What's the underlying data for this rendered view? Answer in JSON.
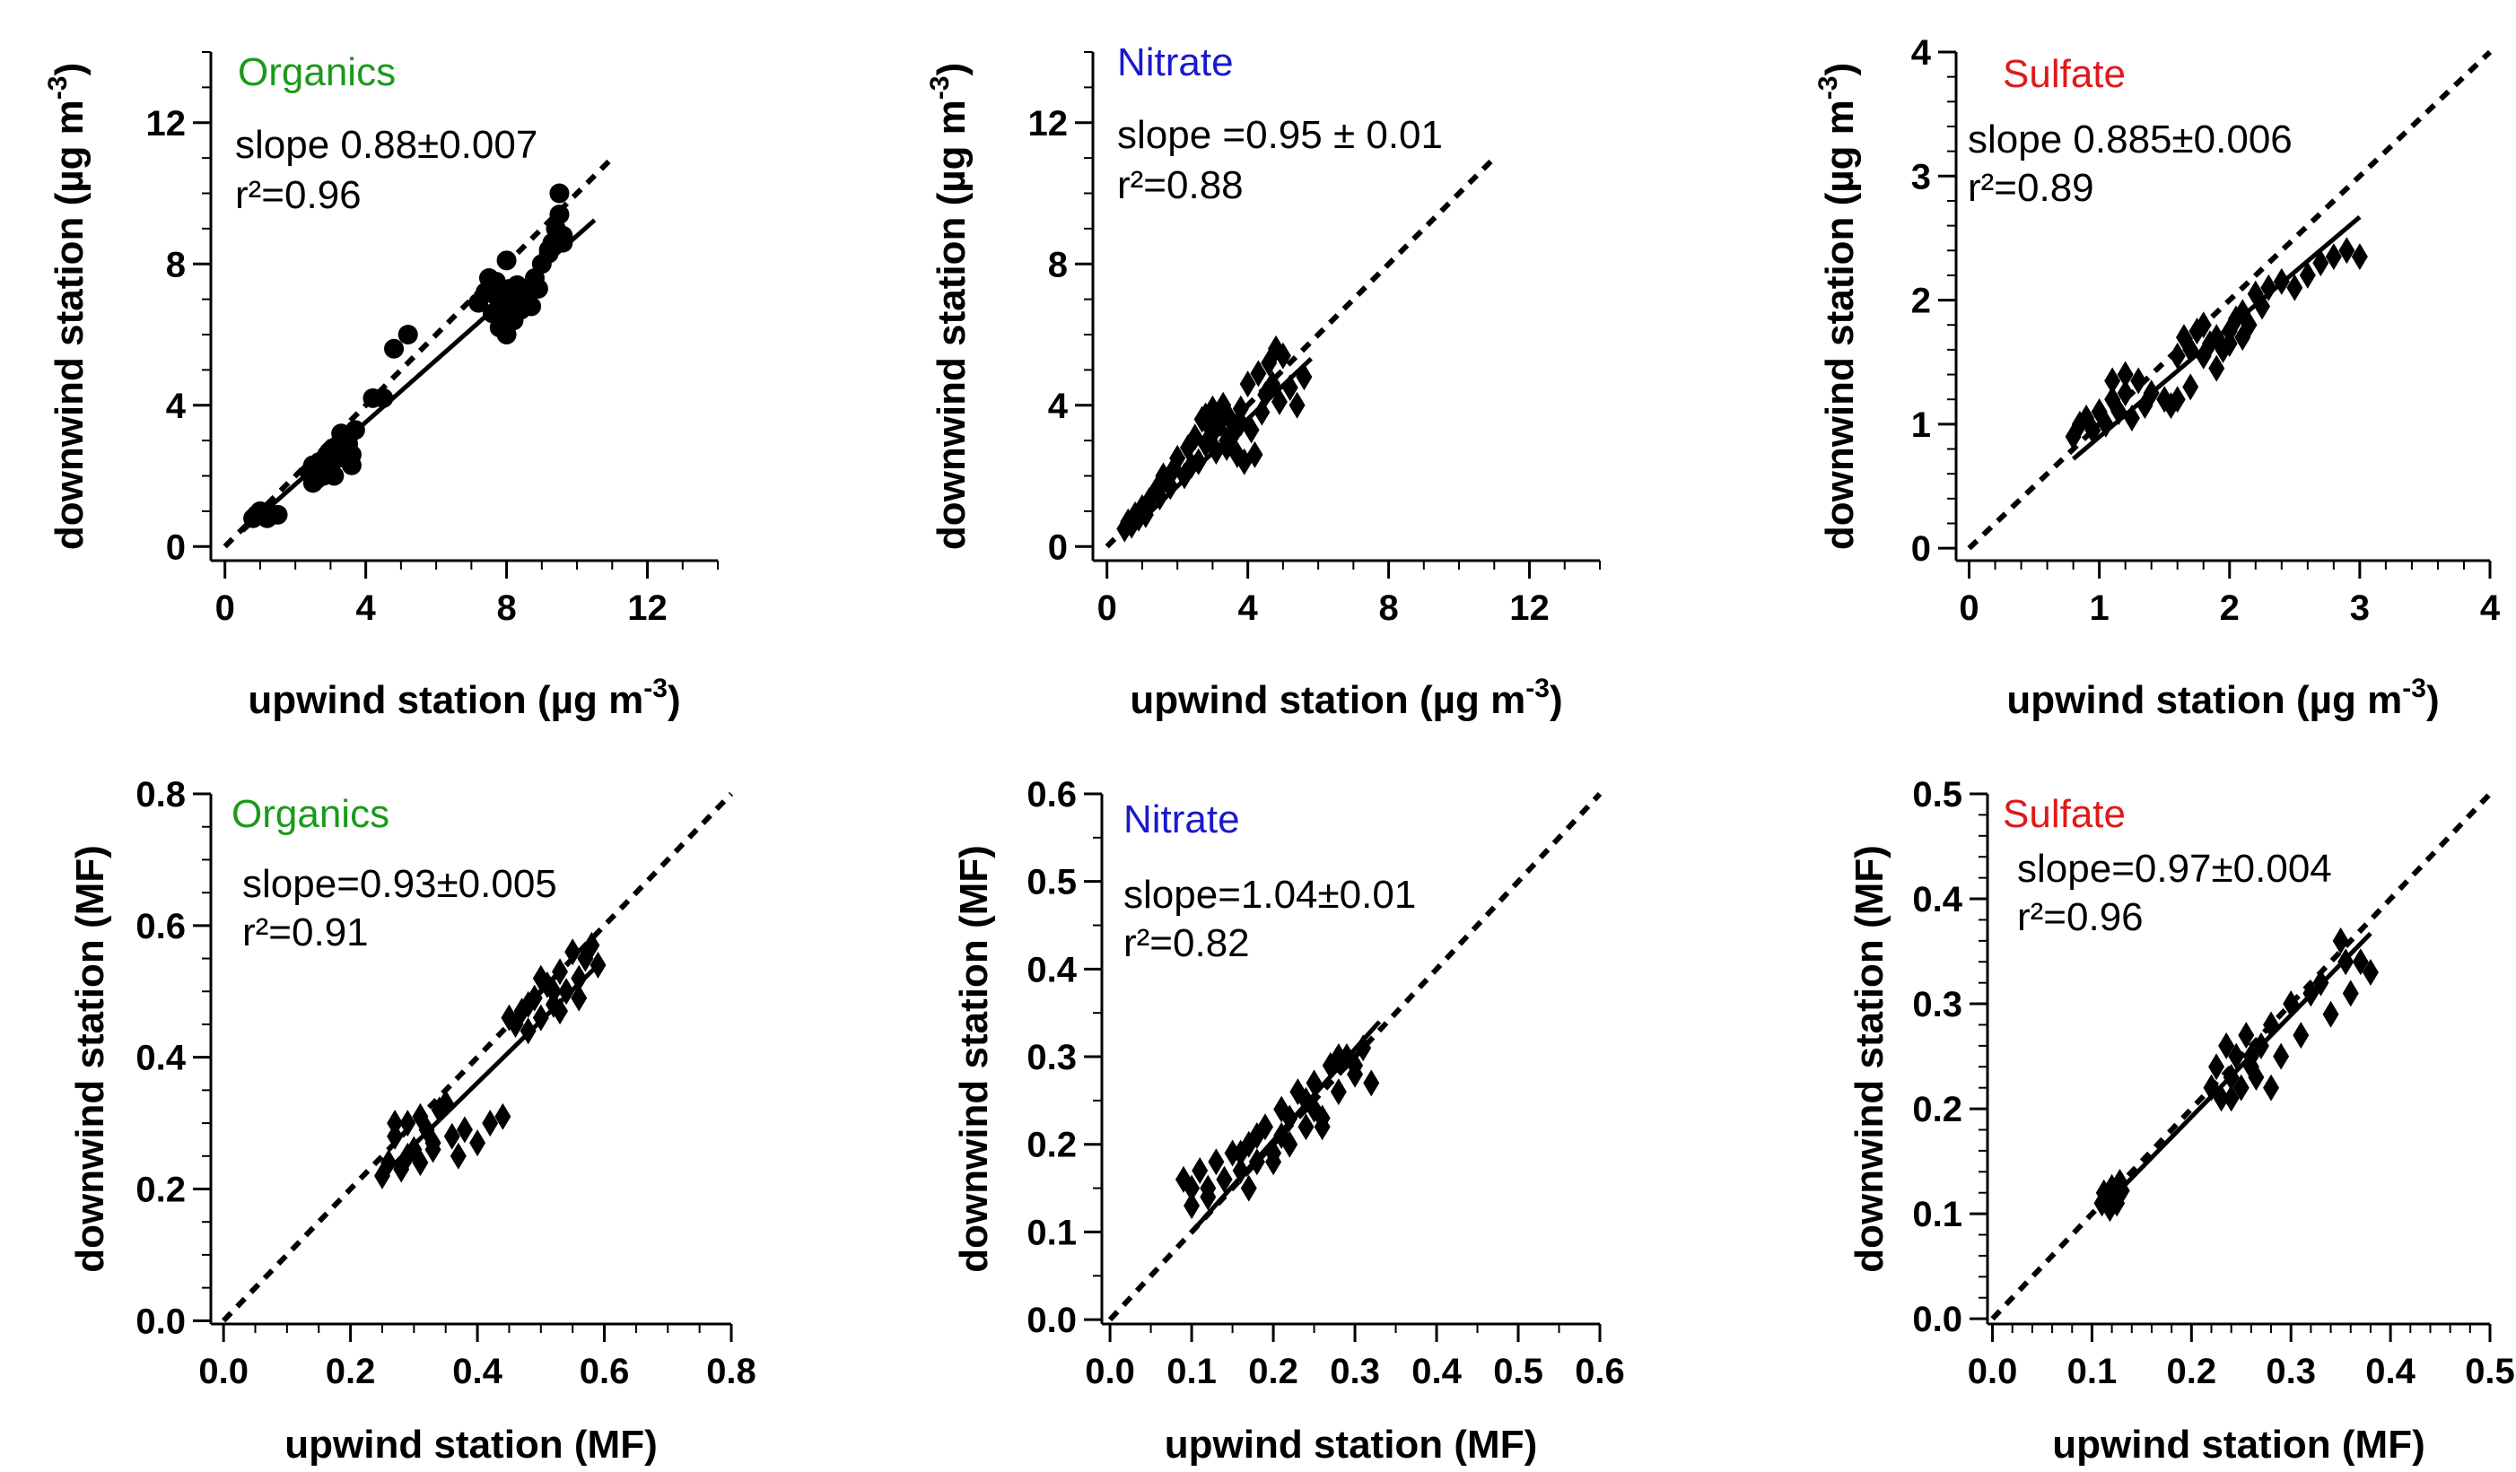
{
  "chart_data": [
    {
      "type": "scatter",
      "panel": "a",
      "title": "Organics",
      "title_color": "#1a9a1a",
      "xlabel": "upwind station (µg m",
      "xlabel_sup": "-3",
      "xlabel_tail": ")",
      "ylabel": "downwind station (µg m",
      "ylabel_sup": "-3",
      "ylabel_tail": ")",
      "xlim": [
        -0.4,
        14
      ],
      "ylim": [
        -0.4,
        14
      ],
      "xticks": [
        0,
        4,
        8,
        12
      ],
      "yticks": [
        0,
        4,
        8,
        12
      ],
      "xtick_labels": [
        "0",
        "4",
        "8",
        "12"
      ],
      "ytick_labels": [
        "0",
        "4",
        "8",
        "12"
      ],
      "minor_step": 1,
      "annotation_line1": "slope 0.88±0.007",
      "annotation_line2": "r²=0.96",
      "marker": "circle",
      "fit": {
        "x": [
          0.5,
          10.5
        ],
        "y": [
          0.44,
          9.24
        ]
      },
      "one_to_one": {
        "x": [
          0,
          11
        ],
        "y": [
          0,
          11
        ]
      },
      "x": [
        0.8,
        0.9,
        1.0,
        1.1,
        1.3,
        1.5,
        1.2,
        2.4,
        2.5,
        2.6,
        2.7,
        2.8,
        2.9,
        3.0,
        3.1,
        3.2,
        3.3,
        3.4,
        3.5,
        3.6,
        2.5,
        2.7,
        2.9,
        3.1,
        3.3,
        3.5,
        3.6,
        3.3,
        3.7,
        4.2,
        4.5,
        4.8,
        5.2,
        7.2,
        7.4,
        7.6,
        7.7,
        7.8,
        7.9,
        8.0,
        8.1,
        8.2,
        8.3,
        8.4,
        8.5,
        7.5,
        7.7,
        7.9,
        8.1,
        8.3,
        7.8,
        8.0,
        8.2,
        8.4,
        8.6,
        8.8,
        9.0,
        9.2,
        9.3,
        9.4,
        9.5,
        9.6,
        9.2,
        9.5,
        9.6,
        8.5,
        8.7,
        8.9,
        8.0
      ],
      "y": [
        0.8,
        0.9,
        1.0,
        0.9,
        0.9,
        0.9,
        0.8,
        2.1,
        2.3,
        1.9,
        2.4,
        2.0,
        2.6,
        2.3,
        2.8,
        2.5,
        3.0,
        2.7,
        2.9,
        2.6,
        1.8,
        2.2,
        2.4,
        2.0,
        2.7,
        3.1,
        2.3,
        3.2,
        3.3,
        4.2,
        4.2,
        5.6,
        6.0,
        6.9,
        7.2,
        6.6,
        7.5,
        6.8,
        7.0,
        6.3,
        7.3,
        6.6,
        7.4,
        6.9,
        7.1,
        7.6,
        7.1,
        6.5,
        6.8,
        7.2,
        6.2,
        6.0,
        6.4,
        6.7,
        7.3,
        7.6,
        8.0,
        8.3,
        8.6,
        9.0,
        9.4,
        8.8,
        8.4,
        10.0,
        8.6,
        7.0,
        6.8,
        7.3,
        8.1
      ]
    },
    {
      "type": "scatter",
      "panel": "b",
      "title": "Nitrate",
      "title_color": "#1a1acc",
      "xlabel": "upwind station (µg m",
      "xlabel_sup": "-3",
      "xlabel_tail": ")",
      "ylabel": "downwind station (µg m",
      "ylabel_sup": "-3",
      "ylabel_tail": ")",
      "xlim": [
        -0.4,
        14
      ],
      "ylim": [
        -0.4,
        14
      ],
      "xticks": [
        0,
        4,
        8,
        12
      ],
      "yticks": [
        0,
        4,
        8,
        12
      ],
      "xtick_labels": [
        "0",
        "4",
        "8",
        "12"
      ],
      "ytick_labels": [
        "0",
        "4",
        "8",
        "12"
      ],
      "minor_step": 1,
      "annotation_line1": "slope =0.95 ± 0.01",
      "annotation_line2": "r²=0.88",
      "marker": "diamond",
      "fit": {
        "x": [
          0.5,
          5.8
        ],
        "y": [
          0.28,
          5.32
        ]
      },
      "one_to_one": {
        "x": [
          0,
          11
        ],
        "y": [
          0,
          11
        ]
      },
      "x": [
        0.5,
        0.6,
        0.7,
        0.8,
        0.9,
        1.0,
        1.1,
        1.2,
        1.4,
        1.5,
        1.6,
        1.8,
        1.9,
        2.0,
        2.2,
        2.3,
        2.5,
        2.6,
        2.7,
        2.8,
        2.9,
        3.0,
        3.1,
        3.2,
        3.3,
        3.4,
        3.5,
        3.6,
        3.7,
        3.8,
        3.9,
        4.0,
        4.1,
        4.2,
        4.3,
        4.4,
        4.5,
        4.6,
        4.7,
        4.8,
        4.9,
        5.0,
        5.2,
        5.4,
        5.6,
        3.0,
        3.4,
        3.8,
        2.4,
        2.8
      ],
      "y": [
        0.5,
        0.7,
        0.6,
        0.9,
        0.8,
        1.1,
        0.9,
        1.3,
        1.6,
        1.4,
        2.0,
        1.7,
        2.2,
        2.5,
        2.0,
        2.8,
        3.1,
        2.4,
        3.6,
        2.9,
        3.4,
        3.9,
        2.7,
        3.5,
        4.0,
        3.0,
        3.6,
        3.2,
        2.6,
        3.9,
        2.4,
        4.6,
        3.3,
        2.6,
        4.9,
        3.8,
        4.3,
        5.2,
        4.6,
        5.6,
        4.1,
        5.4,
        4.5,
        4.0,
        4.8,
        3.2,
        2.8,
        3.5,
        2.3,
        3.7
      ]
    },
    {
      "type": "scatter",
      "panel": "c",
      "title": "Sulfate",
      "title_color": "#dd1a1a",
      "xlabel": "upwind station (µg m",
      "xlabel_sup": "-3",
      "xlabel_tail": ")",
      "ylabel": "downwind station (µg m",
      "ylabel_sup": "-3",
      "ylabel_tail": ")",
      "xlim": [
        -0.1,
        4
      ],
      "ylim": [
        -0.1,
        4
      ],
      "xticks": [
        0,
        1,
        2,
        3,
        4
      ],
      "yticks": [
        0,
        1,
        2,
        3,
        4
      ],
      "xtick_labels": [
        "0",
        "1",
        "2",
        "3",
        "4"
      ],
      "ytick_labels": [
        "0",
        "1",
        "2",
        "3",
        "4"
      ],
      "minor_step": 0.2,
      "annotation_line1": "slope 0.885±0.006",
      "annotation_line2": "r²=0.89",
      "marker": "diamond",
      "fit": {
        "x": [
          0.8,
          3.0
        ],
        "y": [
          0.72,
          2.67
        ]
      },
      "one_to_one": {
        "x": [
          0,
          4
        ],
        "y": [
          0,
          4
        ]
      },
      "x": [
        0.8,
        0.85,
        0.9,
        0.95,
        1.0,
        1.05,
        1.1,
        1.15,
        1.2,
        1.25,
        1.3,
        1.35,
        1.4,
        1.5,
        1.55,
        1.6,
        1.65,
        1.7,
        1.75,
        1.8,
        1.85,
        1.9,
        1.95,
        2.0,
        2.05,
        2.1,
        2.15,
        2.2,
        2.25,
        2.3,
        2.4,
        2.5,
        2.6,
        2.7,
        2.8,
        2.9,
        3.0,
        1.6,
        1.7,
        1.8,
        1.9,
        2.0,
        2.1,
        1.1,
        1.2
      ],
      "y": [
        0.9,
        1.0,
        1.05,
        0.95,
        1.1,
        1.0,
        1.2,
        1.1,
        1.25,
        1.05,
        1.35,
        1.15,
        1.25,
        1.2,
        1.15,
        1.55,
        1.7,
        1.6,
        1.75,
        1.8,
        1.65,
        1.7,
        1.6,
        1.75,
        1.85,
        1.9,
        1.8,
        2.05,
        1.95,
        2.1,
        2.15,
        2.1,
        2.2,
        2.3,
        2.35,
        2.4,
        2.35,
        1.2,
        1.3,
        1.55,
        1.45,
        1.65,
        1.7,
        1.35,
        1.4
      ]
    },
    {
      "type": "scatter",
      "panel": "d",
      "title": "Organics",
      "title_color": "#1a9a1a",
      "xlabel": "upwind station (MF)",
      "xlabel_sup": "",
      "xlabel_tail": "",
      "ylabel": "downwind station (MF)",
      "ylabel_sup": "",
      "ylabel_tail": "",
      "xlim": [
        -0.02,
        0.8
      ],
      "ylim": [
        -0.005,
        0.8
      ],
      "xticks": [
        0,
        0.2,
        0.4,
        0.6,
        0.8
      ],
      "yticks": [
        0,
        0.2,
        0.4,
        0.6,
        0.8
      ],
      "xtick_labels": [
        "0.0",
        "0.2",
        "0.4",
        "0.6",
        "0.8"
      ],
      "ytick_labels": [
        "0.0",
        "0.2",
        "0.4",
        "0.6",
        "0.8"
      ],
      "minor_step": 0.05,
      "annotation_line1": "slope=0.93±0.005",
      "annotation_line2": "r²=0.91",
      "marker": "diamond",
      "fit": {
        "x": [
          0.25,
          0.59
        ],
        "y": [
          0.22,
          0.54
        ]
      },
      "one_to_one": {
        "x": [
          0,
          0.8
        ],
        "y": [
          0,
          0.8
        ]
      },
      "x": [
        0.25,
        0.26,
        0.27,
        0.28,
        0.29,
        0.3,
        0.31,
        0.32,
        0.33,
        0.34,
        0.35,
        0.36,
        0.37,
        0.38,
        0.4,
        0.42,
        0.44,
        0.46,
        0.47,
        0.48,
        0.49,
        0.5,
        0.51,
        0.52,
        0.53,
        0.54,
        0.55,
        0.56,
        0.57,
        0.58,
        0.59,
        0.27,
        0.29,
        0.31,
        0.33,
        0.35,
        0.45,
        0.5,
        0.53,
        0.56,
        0.48,
        0.52
      ],
      "y": [
        0.22,
        0.24,
        0.28,
        0.23,
        0.3,
        0.26,
        0.24,
        0.29,
        0.27,
        0.32,
        0.33,
        0.28,
        0.25,
        0.29,
        0.27,
        0.3,
        0.31,
        0.45,
        0.47,
        0.44,
        0.49,
        0.46,
        0.51,
        0.48,
        0.53,
        0.5,
        0.56,
        0.52,
        0.55,
        0.57,
        0.54,
        0.3,
        0.25,
        0.31,
        0.26,
        0.33,
        0.46,
        0.52,
        0.47,
        0.49,
        0.48,
        0.5
      ]
    },
    {
      "type": "scatter",
      "panel": "e",
      "title": "Nitrate",
      "title_color": "#1a1acc",
      "xlabel": "upwind station (MF)",
      "xlabel_sup": "",
      "xlabel_tail": "",
      "ylabel": "downwind station (MF)",
      "ylabel_sup": "",
      "ylabel_tail": "",
      "xlim": [
        -0.01,
        0.6
      ],
      "ylim": [
        -0.005,
        0.6
      ],
      "xticks": [
        0,
        0.1,
        0.2,
        0.3,
        0.4,
        0.5,
        0.6
      ],
      "yticks": [
        0,
        0.1,
        0.2,
        0.3,
        0.4,
        0.5,
        0.6
      ],
      "xtick_labels": [
        "0.0",
        "0.1",
        "0.2",
        "0.3",
        "0.4",
        "0.5",
        "0.6"
      ],
      "ytick_labels": [
        "0.0",
        "0.1",
        "0.2",
        "0.3",
        "0.4",
        "0.5",
        "0.6"
      ],
      "minor_step": 0.05,
      "annotation_line1": "slope=1.04±0.01",
      "annotation_line2": "r²=0.82",
      "marker": "diamond",
      "fit": {
        "x": [
          0.1,
          0.33
        ],
        "y": [
          0.1,
          0.34
        ]
      },
      "one_to_one": {
        "x": [
          0,
          0.6
        ],
        "y": [
          0,
          0.6
        ]
      },
      "x": [
        0.09,
        0.1,
        0.11,
        0.12,
        0.13,
        0.14,
        0.15,
        0.16,
        0.17,
        0.18,
        0.19,
        0.2,
        0.21,
        0.22,
        0.23,
        0.24,
        0.25,
        0.26,
        0.27,
        0.28,
        0.29,
        0.3,
        0.31,
        0.32,
        0.1,
        0.12,
        0.14,
        0.16,
        0.18,
        0.2,
        0.22,
        0.24,
        0.26,
        0.28,
        0.3,
        0.17,
        0.21,
        0.25
      ],
      "y": [
        0.16,
        0.13,
        0.17,
        0.15,
        0.18,
        0.16,
        0.19,
        0.17,
        0.2,
        0.18,
        0.22,
        0.19,
        0.24,
        0.2,
        0.26,
        0.22,
        0.27,
        0.23,
        0.29,
        0.26,
        0.3,
        0.28,
        0.31,
        0.27,
        0.15,
        0.14,
        0.16,
        0.19,
        0.21,
        0.18,
        0.23,
        0.25,
        0.22,
        0.3,
        0.29,
        0.15,
        0.21,
        0.24
      ]
    },
    {
      "type": "scatter",
      "panel": "f",
      "title": "Sulfate",
      "title_color": "#dd1a1a",
      "xlabel": "upwind station (MF)",
      "xlabel_sup": "",
      "xlabel_tail": "",
      "ylabel": "downwind station (MF)",
      "ylabel_sup": "",
      "ylabel_tail": "",
      "xlim": [
        -0.005,
        0.5
      ],
      "ylim": [
        -0.005,
        0.5
      ],
      "xticks": [
        0,
        0.1,
        0.2,
        0.3,
        0.4,
        0.5
      ],
      "yticks": [
        0,
        0.1,
        0.2,
        0.3,
        0.4,
        0.5
      ],
      "xtick_labels": [
        "0.0",
        "0.1",
        "0.2",
        "0.3",
        "0.4",
        "0.5"
      ],
      "ytick_labels": [
        "0.0",
        "0.1",
        "0.2",
        "0.3",
        "0.4",
        "0.5"
      ],
      "minor_step": 0.02,
      "annotation_line1": "slope=0.97±0.004",
      "annotation_line2": "r²=0.96",
      "marker": "diamond",
      "fit": {
        "x": [
          0.11,
          0.38
        ],
        "y": [
          0.105,
          0.367
        ]
      },
      "one_to_one": {
        "x": [
          0,
          0.5
        ],
        "y": [
          0,
          0.5
        ]
      },
      "x": [
        0.11,
        0.112,
        0.115,
        0.118,
        0.12,
        0.123,
        0.125,
        0.128,
        0.13,
        0.22,
        0.225,
        0.23,
        0.235,
        0.24,
        0.245,
        0.25,
        0.255,
        0.26,
        0.265,
        0.27,
        0.28,
        0.29,
        0.3,
        0.31,
        0.32,
        0.33,
        0.34,
        0.35,
        0.355,
        0.36,
        0.37,
        0.38,
        0.24,
        0.26,
        0.28
      ],
      "y": [
        0.11,
        0.12,
        0.115,
        0.105,
        0.125,
        0.118,
        0.11,
        0.13,
        0.122,
        0.22,
        0.24,
        0.21,
        0.26,
        0.23,
        0.25,
        0.22,
        0.27,
        0.24,
        0.23,
        0.26,
        0.28,
        0.25,
        0.3,
        0.27,
        0.31,
        0.32,
        0.29,
        0.36,
        0.34,
        0.31,
        0.34,
        0.33,
        0.21,
        0.25,
        0.22
      ]
    }
  ]
}
